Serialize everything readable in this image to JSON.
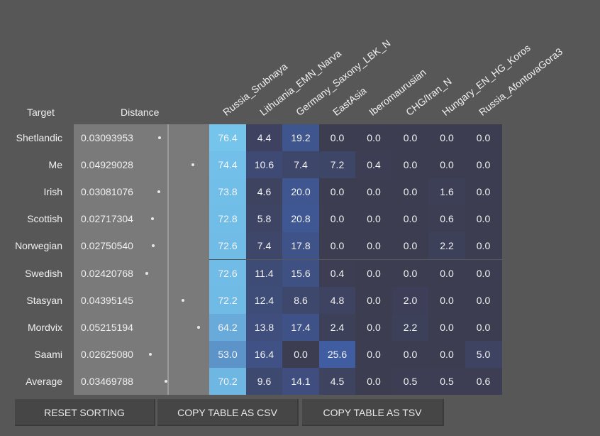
{
  "headers": {
    "target": "Target",
    "distance": "Distance",
    "columns": [
      "Russia_Srubnaya",
      "Lithuania_EMN_Narva",
      "Germany_Saxony_LBK_N",
      "EastAsia",
      "Iberomaurusian",
      "CHG/Iran_N",
      "Hungary_EN_HG_Koros",
      "Russia_AfontovaGora3"
    ]
  },
  "rows": [
    {
      "target": "Shetlandic",
      "distance": "0.03093953",
      "values": [
        "76.4",
        "4.4",
        "19.2",
        "0.0",
        "0.0",
        "0.0",
        "0.0",
        "0.0"
      ]
    },
    {
      "target": "Me",
      "distance": "0.04929028",
      "values": [
        "74.4",
        "10.6",
        "7.4",
        "7.2",
        "0.4",
        "0.0",
        "0.0",
        "0.0"
      ]
    },
    {
      "target": "Irish",
      "distance": "0.03081076",
      "values": [
        "73.8",
        "4.6",
        "20.0",
        "0.0",
        "0.0",
        "0.0",
        "1.6",
        "0.0"
      ]
    },
    {
      "target": "Scottish",
      "distance": "0.02717304",
      "values": [
        "72.8",
        "5.8",
        "20.8",
        "0.0",
        "0.0",
        "0.0",
        "0.6",
        "0.0"
      ]
    },
    {
      "target": "Norwegian",
      "distance": "0.02750540",
      "values": [
        "72.6",
        "7.4",
        "17.8",
        "0.0",
        "0.0",
        "0.0",
        "2.2",
        "0.0"
      ]
    },
    {
      "target": "Swedish",
      "distance": "0.02420768",
      "values": [
        "72.6",
        "11.4",
        "15.6",
        "0.4",
        "0.0",
        "0.0",
        "0.0",
        "0.0"
      ]
    },
    {
      "target": "Stasyan",
      "distance": "0.04395145",
      "values": [
        "72.2",
        "12.4",
        "8.6",
        "4.8",
        "0.0",
        "2.0",
        "0.0",
        "0.0"
      ]
    },
    {
      "target": "Mordvix",
      "distance": "0.05215194",
      "values": [
        "64.2",
        "13.8",
        "17.4",
        "2.4",
        "0.0",
        "2.2",
        "0.0",
        "0.0"
      ]
    },
    {
      "target": "Saami",
      "distance": "0.02625080",
      "values": [
        "53.0",
        "16.4",
        "0.0",
        "25.6",
        "0.0",
        "0.0",
        "0.0",
        "5.0"
      ]
    },
    {
      "target": "Average",
      "distance": "0.03469788",
      "values": [
        "70.2",
        "9.6",
        "14.1",
        "4.5",
        "0.0",
        "0.5",
        "0.5",
        "0.6"
      ]
    }
  ],
  "buttons": {
    "reset": "RESET SORTING",
    "csv": "COPY TABLE AS CSV",
    "tsv": "COPY TABLE AS TSV"
  },
  "colors": {
    "background": "#575757",
    "distance_panel": "#7a7a7a",
    "cell_zero": "#3d3d52",
    "cell_high": "#74c4ec",
    "button": "#464646"
  }
}
